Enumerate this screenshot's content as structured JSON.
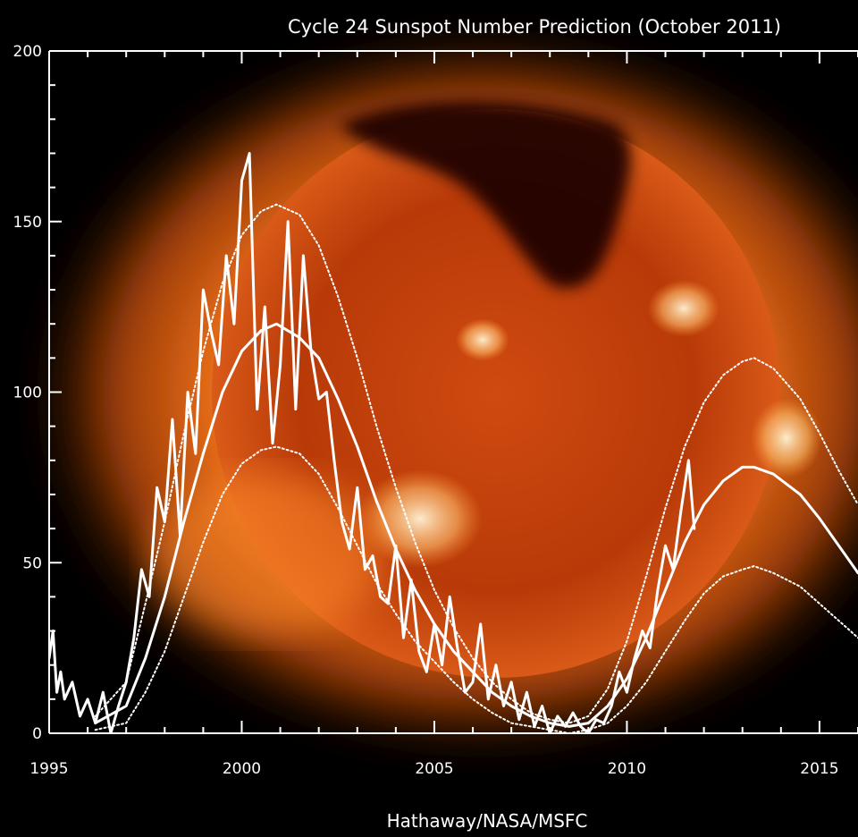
{
  "chart_data": {
    "type": "line",
    "title": "Cycle 24 Sunspot Number Prediction (October 2011)",
    "credit": "Hathaway/NASA/MSFC",
    "xlabel": "",
    "ylabel": "",
    "xlim": [
      1995,
      2016
    ],
    "ylim": [
      0,
      200
    ],
    "x_ticks": [
      1995,
      2000,
      2005,
      2010,
      2015
    ],
    "y_ticks": [
      0,
      50,
      100,
      150,
      200
    ],
    "grid": false,
    "legend": "none",
    "background": "solar x-ray image (orange corona)",
    "colors": {
      "lines": "#ffffff",
      "axes": "#ffffff",
      "background": "#000000",
      "sun_core": "#b83a08",
      "sun_glow": "#ff7a1e"
    },
    "series": [
      {
        "style": "solid-jagged",
        "x": [
          1995.0,
          1995.1,
          1995.2,
          1995.3,
          1995.4,
          1995.6,
          1995.8,
          1996.0,
          1996.2,
          1996.4,
          1996.6,
          1996.8,
          1997.0,
          1997.2,
          1997.4,
          1997.6,
          1997.8,
          1998.0,
          1998.2,
          1998.4,
          1998.6,
          1998.8,
          1999.0,
          1999.2,
          1999.4,
          1999.6,
          1999.8,
          2000.0,
          2000.2,
          2000.4,
          2000.6,
          2000.8,
          2001.0,
          2001.2,
          2001.4,
          2001.6,
          2001.8,
          2002.0,
          2002.2,
          2002.4,
          2002.6,
          2002.8,
          2003.0,
          2003.2,
          2003.4,
          2003.6,
          2003.8,
          2004.0,
          2004.2,
          2004.4,
          2004.6,
          2004.8,
          2005.0,
          2005.2,
          2005.4,
          2005.6,
          2005.8,
          2006.0,
          2006.2,
          2006.4,
          2006.6,
          2006.8,
          2007.0,
          2007.2,
          2007.4,
          2007.6,
          2007.8,
          2008.0,
          2008.2,
          2008.4,
          2008.6,
          2008.8,
          2009.0,
          2009.2,
          2009.4,
          2009.6,
          2009.8,
          2010.0,
          2010.2,
          2010.4,
          2010.6,
          2010.8,
          2011.0,
          2011.2,
          2011.4,
          2011.6,
          2011.75
        ],
        "y": [
          22,
          30,
          12,
          18,
          10,
          15,
          5,
          10,
          3,
          12,
          0,
          8,
          15,
          28,
          48,
          40,
          72,
          62,
          92,
          58,
          100,
          82,
          130,
          118,
          108,
          140,
          120,
          162,
          170,
          95,
          125,
          85,
          108,
          150,
          95,
          140,
          112,
          98,
          100,
          80,
          62,
          54,
          72,
          48,
          52,
          40,
          38,
          55,
          28,
          45,
          24,
          18,
          32,
          20,
          40,
          25,
          12,
          15,
          32,
          10,
          20,
          8,
          15,
          4,
          12,
          2,
          8,
          0,
          5,
          2,
          6,
          2,
          0,
          4,
          3,
          8,
          18,
          12,
          22,
          30,
          25,
          42,
          55,
          48,
          65,
          80,
          60
        ]
      },
      {
        "name": "",
        "style": "solid-smooth",
        "x": [
          1996.2,
          1997.0,
          1997.5,
          1998.0,
          1998.5,
          1999.0,
          1999.5,
          2000.0,
          2000.5,
          2000.9,
          2001.5,
          2002.0,
          2002.5,
          2003.0,
          2003.5,
          2004.0,
          2004.5,
          2005.0,
          2005.5,
          2006.0,
          2006.5,
          2007.0,
          2007.5,
          2008.0,
          2008.5,
          2009.0,
          2009.5,
          2010.0,
          2010.5,
          2011.0,
          2011.5,
          2012.0,
          2012.5,
          2013.0,
          2013.3,
          2013.8,
          2014.5,
          2015.0,
          2015.5,
          2016.0
        ],
        "y": [
          3,
          8,
          22,
          40,
          62,
          82,
          100,
          112,
          118,
          120,
          116,
          110,
          98,
          84,
          68,
          54,
          42,
          32,
          24,
          18,
          12,
          8,
          5,
          3,
          2,
          3,
          8,
          16,
          28,
          42,
          56,
          67,
          74,
          78,
          78,
          76,
          70,
          63,
          55,
          47
        ]
      },
      {
        "style": "dotted-upper",
        "x": [
          1996.2,
          1997.0,
          1997.5,
          1998.0,
          1998.5,
          1999.0,
          1999.5,
          2000.0,
          2000.5,
          2000.9,
          2001.5,
          2002.0,
          2002.5,
          2003.0,
          2003.5,
          2004.0,
          2004.5,
          2005.0,
          2005.5,
          2006.0,
          2006.5,
          2007.0,
          2007.5,
          2008.0,
          2008.5,
          2009.0,
          2009.5,
          2010.0,
          2010.5,
          2011.0,
          2011.5,
          2012.0,
          2012.5,
          2013.0,
          2013.3,
          2013.8,
          2014.5,
          2015.0,
          2015.5,
          2016.0
        ],
        "y": [
          5,
          15,
          38,
          62,
          88,
          112,
          132,
          146,
          153,
          155,
          152,
          143,
          128,
          110,
          90,
          72,
          56,
          42,
          31,
          22,
          15,
          10,
          6,
          4,
          3,
          5,
          13,
          27,
          46,
          66,
          84,
          97,
          105,
          109,
          110,
          107,
          98,
          88,
          77,
          67
        ]
      },
      {
        "style": "dotted-lower",
        "x": [
          1996.2,
          1997.0,
          1997.5,
          1998.0,
          1998.5,
          1999.0,
          1999.5,
          2000.0,
          2000.5,
          2000.9,
          2001.5,
          2002.0,
          2002.5,
          2003.0,
          2003.5,
          2004.0,
          2004.5,
          2005.0,
          2005.5,
          2006.0,
          2006.5,
          2007.0,
          2007.5,
          2008.0,
          2008.5,
          2009.0,
          2009.5,
          2010.0,
          2010.5,
          2011.0,
          2011.5,
          2012.0,
          2012.5,
          2013.0,
          2013.3,
          2013.8,
          2014.5,
          2015.0,
          2015.5,
          2016.0
        ],
        "y": [
          1,
          3,
          12,
          24,
          40,
          56,
          70,
          79,
          83,
          84,
          82,
          76,
          66,
          55,
          44,
          35,
          27,
          21,
          15,
          10,
          6,
          3,
          2,
          1,
          0,
          1,
          3,
          8,
          15,
          24,
          33,
          41,
          46,
          48,
          49,
          47,
          43,
          38,
          33,
          28
        ]
      }
    ]
  }
}
